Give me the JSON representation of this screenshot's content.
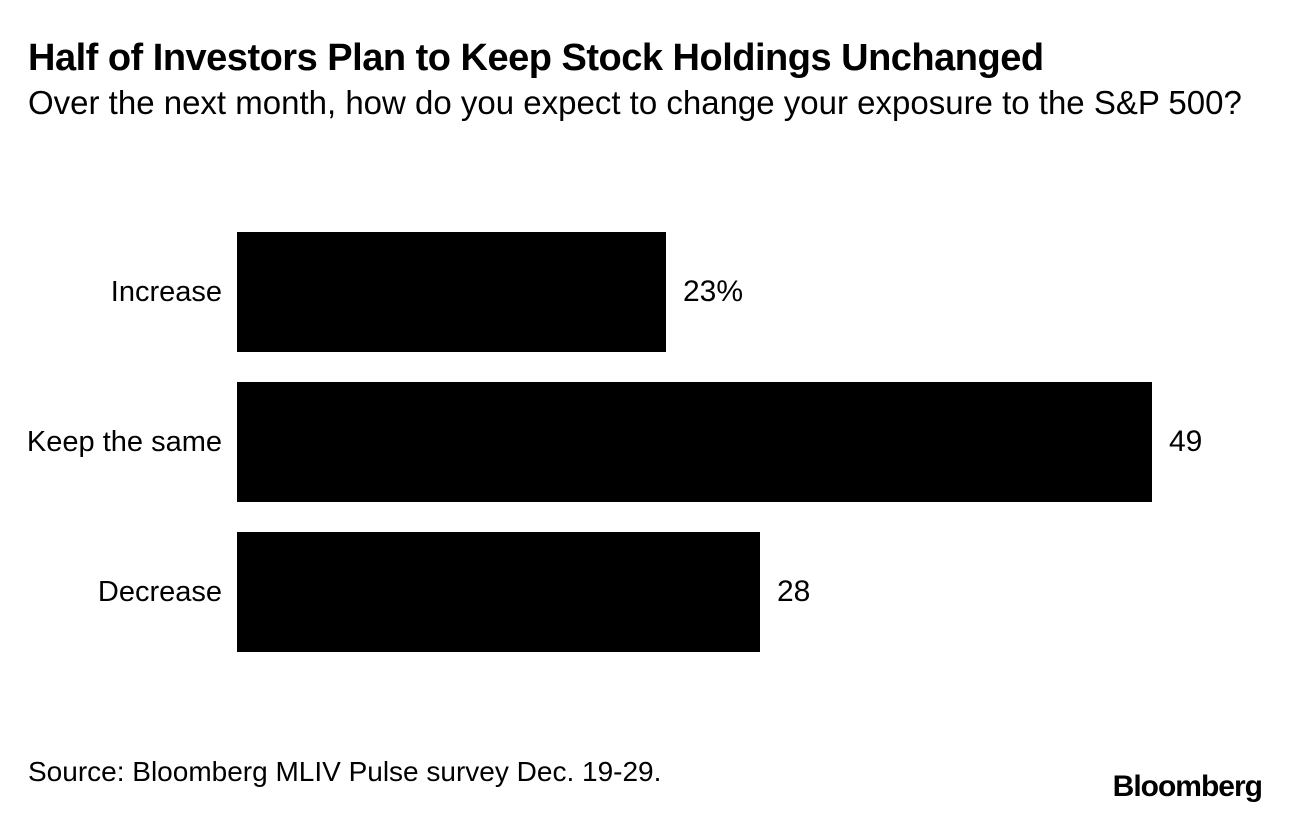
{
  "header": {
    "title": "Half of Investors Plan to Keep Stock Holdings Unchanged",
    "subtitle": "Over the next month, how do you expect to change your exposure to the S&P 500?"
  },
  "chart_data": {
    "type": "bar",
    "orientation": "horizontal",
    "title": "Half of Investors Plan to Keep Stock Holdings Unchanged",
    "subtitle": "Over the next month, how do you expect to change your exposure to the S&P 500?",
    "categories": [
      "Increase",
      "Keep the same",
      "Decrease"
    ],
    "values": [
      23,
      49,
      28
    ],
    "display_values": [
      "23%",
      "49",
      "28"
    ],
    "unit": "percent",
    "xlim": [
      0,
      49
    ],
    "bar_color": "#000000",
    "background_color": "#ffffff",
    "grid": false,
    "legend": false,
    "value_labels_position": "right-of-bar"
  },
  "footer": {
    "source": "Source: Bloomberg MLIV Pulse survey Dec. 19-29.",
    "brand": "Bloomberg"
  }
}
